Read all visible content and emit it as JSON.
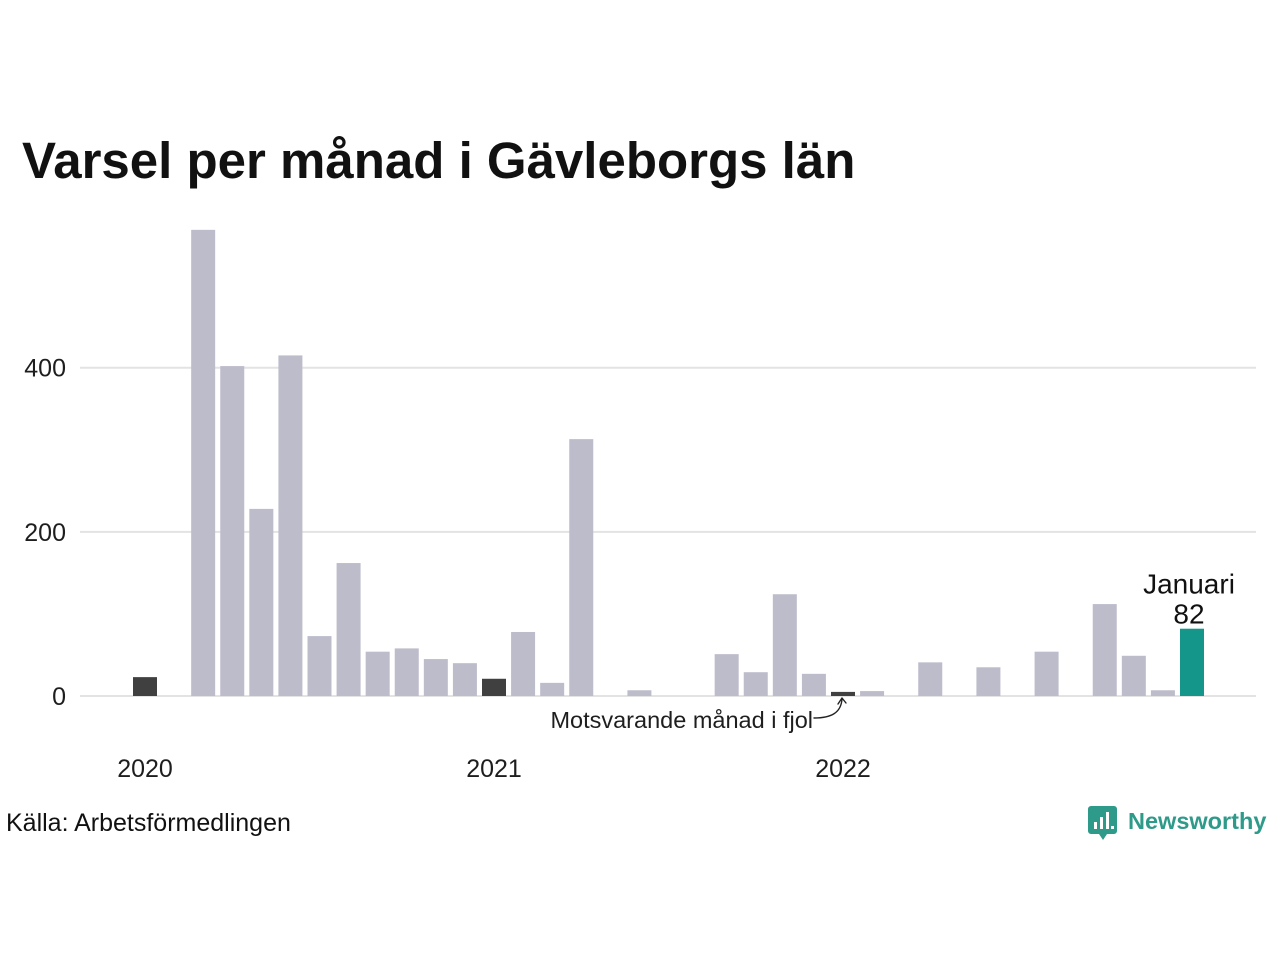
{
  "source": "Källa: Arbetsförmedlingen",
  "logo": {
    "text": "Newsworthy",
    "icon": "newsworthy-chart-bubble-icon",
    "color": "#2e9a8a"
  },
  "chart_data": {
    "type": "bar",
    "title": "Varsel per månad i Gävleborgs län",
    "x": [
      "2020-01",
      "2020-02",
      "2020-03",
      "2020-04",
      "2020-05",
      "2020-06",
      "2020-07",
      "2020-08",
      "2020-09",
      "2020-10",
      "2020-11",
      "2020-12",
      "2021-01",
      "2021-02",
      "2021-03",
      "2021-04",
      "2021-05",
      "2021-06",
      "2021-07",
      "2021-08",
      "2021-09",
      "2021-10",
      "2021-11",
      "2021-12",
      "2022-01",
      "2022-02",
      "2022-03",
      "2022-04",
      "2022-05",
      "2022-06",
      "2022-07",
      "2022-08",
      "2022-09",
      "2022-10",
      "2022-11",
      "2022-12",
      "2023-01"
    ],
    "values": [
      23,
      0,
      568,
      402,
      228,
      415,
      73,
      162,
      54,
      58,
      45,
      40,
      21,
      78,
      16,
      313,
      0,
      7,
      0,
      0,
      51,
      29,
      124,
      27,
      5,
      6,
      0,
      41,
      0,
      35,
      0,
      54,
      0,
      112,
      49,
      7,
      82
    ],
    "xtick_labels": [
      "2020",
      "2021",
      "2022"
    ],
    "yticks": [
      0,
      200,
      400
    ],
    "ylim": [
      0,
      580
    ],
    "grid": true,
    "same_month_previous_years": [
      "2020-01",
      "2021-01",
      "2022-01"
    ],
    "highlight": {
      "x": "2023-01",
      "label": "Januari",
      "value": 82
    },
    "annotation": {
      "text": "Motsvarande månad i fjol",
      "target": "2022-01"
    },
    "colors": {
      "bar": "#bdbccb",
      "same_month_previous_years": "#404040",
      "current_month": "#14968a",
      "grid": "#e3e3e3",
      "annotation_arrow": "#222222"
    }
  }
}
